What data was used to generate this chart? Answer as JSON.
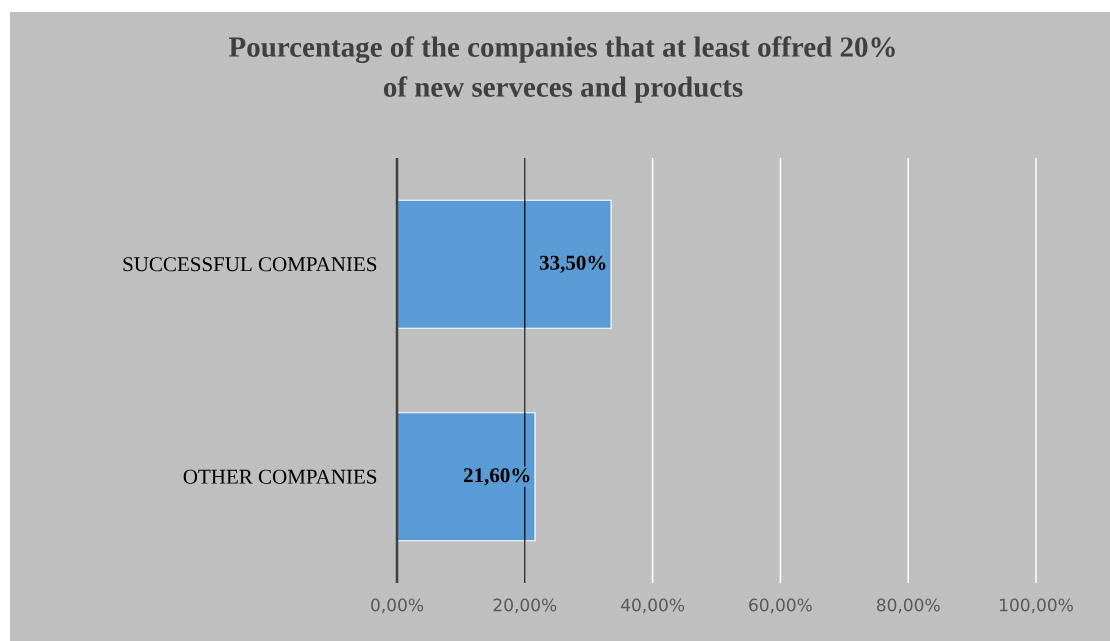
{
  "chart_data": {
    "type": "bar",
    "orientation": "horizontal",
    "title": "Pourcentage of the companies that at least offred 20%\nof new serveces and products",
    "categories": [
      "SUCCESSFUL  COMPANIES",
      "OTHER COMPANIES"
    ],
    "values": [
      33.5,
      21.6
    ],
    "color": "#5b9bd5",
    "value_labels": [
      "33,50%",
      "21,60%"
    ],
    "xlim": [
      0,
      100
    ],
    "xticks": [
      {
        "value": 0,
        "label": "0,00%"
      },
      {
        "value": 20,
        "label": "20,00%"
      },
      {
        "value": 40,
        "label": "40,00%"
      },
      {
        "value": 60,
        "label": "60,00%"
      },
      {
        "value": 80,
        "label": "80,00%"
      },
      {
        "value": 100,
        "label": "100,00%"
      }
    ],
    "grid": "x",
    "ref_lines": [
      {
        "axis": "x",
        "value": 20,
        "color": "#000000"
      }
    ]
  }
}
